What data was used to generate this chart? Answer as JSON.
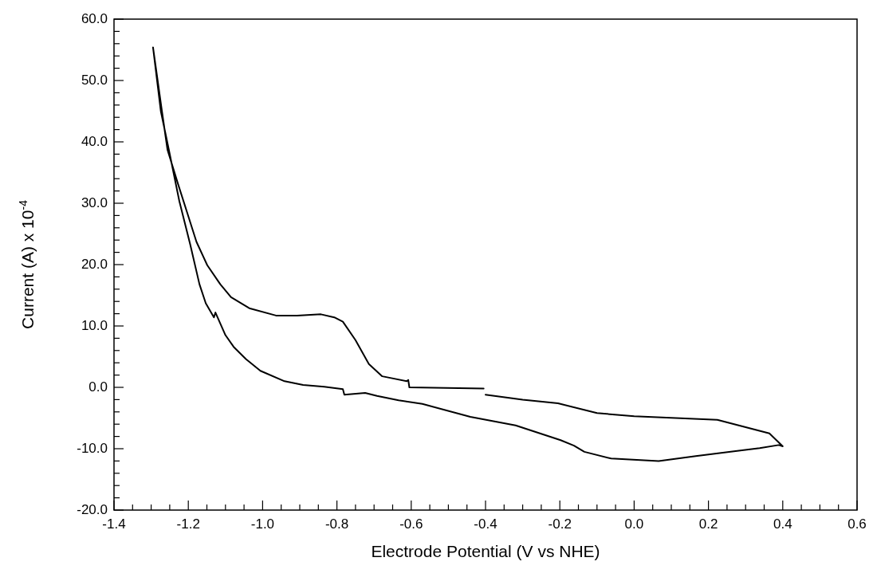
{
  "chart_data": {
    "type": "line",
    "xlabel": "Electrode Potential (V vs NHE)",
    "ylabel": "Current (A) x 10$^{-4}$",
    "grid": false,
    "legend": false,
    "marker": "none",
    "line_style": "solid",
    "xlim": [
      -1.4,
      0.6
    ],
    "ylim": [
      -20,
      60
    ],
    "xticks": [
      {
        "value": -1.4,
        "label": "-1.4"
      },
      {
        "value": -1.35,
        "label": null
      },
      {
        "value": -1.3,
        "label": null
      },
      {
        "value": -1.25,
        "label": null
      },
      {
        "value": -1.2,
        "label": "-1.2"
      },
      {
        "value": -1.15,
        "label": null
      },
      {
        "value": -1.1,
        "label": null
      },
      {
        "value": -1.05,
        "label": null
      },
      {
        "value": -1.0,
        "label": "-1.0"
      },
      {
        "value": -0.95,
        "label": null
      },
      {
        "value": -0.9,
        "label": null
      },
      {
        "value": -0.85,
        "label": null
      },
      {
        "value": -0.8,
        "label": "-0.8"
      },
      {
        "value": -0.75,
        "label": null
      },
      {
        "value": -0.7,
        "label": null
      },
      {
        "value": -0.65,
        "label": null
      },
      {
        "value": -0.6,
        "label": "-0.6"
      },
      {
        "value": -0.55,
        "label": null
      },
      {
        "value": -0.5,
        "label": null
      },
      {
        "value": -0.45,
        "label": null
      },
      {
        "value": -0.4,
        "label": "-0.4"
      },
      {
        "value": -0.35,
        "label": null
      },
      {
        "value": -0.3,
        "label": null
      },
      {
        "value": -0.25,
        "label": null
      },
      {
        "value": -0.2,
        "label": "-0.2"
      },
      {
        "value": -0.15,
        "label": null
      },
      {
        "value": -0.1,
        "label": null
      },
      {
        "value": -0.05,
        "label": null
      },
      {
        "value": 0,
        "label": "0.0"
      },
      {
        "value": 0.05,
        "label": null
      },
      {
        "value": 0.1,
        "label": null
      },
      {
        "value": 0.15,
        "label": null
      },
      {
        "value": 0.2,
        "label": "0.2"
      },
      {
        "value": 0.25,
        "label": null
      },
      {
        "value": 0.3,
        "label": null
      },
      {
        "value": 0.35,
        "label": null
      },
      {
        "value": 0.4,
        "label": "0.4"
      },
      {
        "value": 0.45,
        "label": null
      },
      {
        "value": 0.5,
        "label": null
      },
      {
        "value": 0.55,
        "label": null
      },
      {
        "value": 0.6,
        "label": "0.6"
      }
    ],
    "yticks": [
      {
        "value": -20,
        "label": "-20.0"
      },
      {
        "value": -18,
        "label": null
      },
      {
        "value": -16,
        "label": null
      },
      {
        "value": -14,
        "label": null
      },
      {
        "value": -12,
        "label": null
      },
      {
        "value": -10,
        "label": "-10.0"
      },
      {
        "value": -8,
        "label": null
      },
      {
        "value": -6,
        "label": null
      },
      {
        "value": -4,
        "label": null
      },
      {
        "value": -2,
        "label": null
      },
      {
        "value": 0,
        "label": "0.0"
      },
      {
        "value": 2,
        "label": null
      },
      {
        "value": 4,
        "label": null
      },
      {
        "value": 6,
        "label": null
      },
      {
        "value": 8,
        "label": null
      },
      {
        "value": 10,
        "label": "10.0"
      },
      {
        "value": 12,
        "label": null
      },
      {
        "value": 14,
        "label": null
      },
      {
        "value": 16,
        "label": null
      },
      {
        "value": 18,
        "label": null
      },
      {
        "value": 20,
        "label": "20.0"
      },
      {
        "value": 22,
        "label": null
      },
      {
        "value": 24,
        "label": null
      },
      {
        "value": 26,
        "label": null
      },
      {
        "value": 28,
        "label": null
      },
      {
        "value": 30,
        "label": "30.0"
      },
      {
        "value": 32,
        "label": null
      },
      {
        "value": 34,
        "label": null
      },
      {
        "value": 36,
        "label": null
      },
      {
        "value": 38,
        "label": null
      },
      {
        "value": 40,
        "label": "40.0"
      },
      {
        "value": 42,
        "label": null
      },
      {
        "value": 44,
        "label": null
      },
      {
        "value": 46,
        "label": null
      },
      {
        "value": 48,
        "label": null
      },
      {
        "value": 50,
        "label": "50.0"
      },
      {
        "value": 52,
        "label": null
      },
      {
        "value": 54,
        "label": null
      },
      {
        "value": 56,
        "label": null
      },
      {
        "value": 58,
        "label": null
      },
      {
        "value": 60,
        "label": "60.0"
      }
    ],
    "series": [
      {
        "color": "#000000",
        "x": [
          -0.4,
          -0.3,
          -0.205,
          -0.1,
          0.0,
          0.224,
          0.364,
          0.4,
          0.389,
          0.338,
          0.26,
          0.166,
          0.066,
          -0.062,
          -0.134,
          -0.162,
          -0.198,
          -0.319,
          -0.441,
          -0.57,
          -0.634,
          -0.692,
          -0.724,
          -0.78,
          -0.784,
          -0.834,
          -0.891,
          -0.941,
          -1.006,
          -1.045,
          -1.078,
          -1.1,
          -1.127,
          -1.131,
          -1.153,
          -1.17,
          -1.195,
          -1.224,
          -1.253,
          -1.274,
          -1.295,
          -1.271,
          -1.256,
          -1.228,
          -1.199,
          -1.178,
          -1.149,
          -1.114,
          -1.085,
          -1.036,
          -0.964,
          -0.907,
          -0.843,
          -0.807,
          -0.784,
          -0.75,
          -0.714,
          -0.678,
          -0.612,
          -0.608,
          -0.605,
          -0.405
        ],
        "values": [
          -1.2,
          -2.0,
          -2.6,
          -4.2,
          -4.7,
          -5.3,
          -7.5,
          -9.6,
          -9.4,
          -9.9,
          -10.5,
          -11.2,
          -12.0,
          -11.6,
          -10.5,
          -9.5,
          -8.6,
          -6.2,
          -4.8,
          -2.7,
          -2.1,
          -1.4,
          -0.9,
          -1.2,
          -0.3,
          0.1,
          0.4,
          1.0,
          2.7,
          4.6,
          6.6,
          8.5,
          12.2,
          11.4,
          13.7,
          16.8,
          23.3,
          30.3,
          38.9,
          45.0,
          55.4,
          45.0,
          38.7,
          33.2,
          27.7,
          23.7,
          19.9,
          16.8,
          14.7,
          12.9,
          11.7,
          11.7,
          11.9,
          11.4,
          10.7,
          7.7,
          3.8,
          1.8,
          1.0,
          1.2,
          0.0,
          -0.2
        ]
      }
    ]
  }
}
